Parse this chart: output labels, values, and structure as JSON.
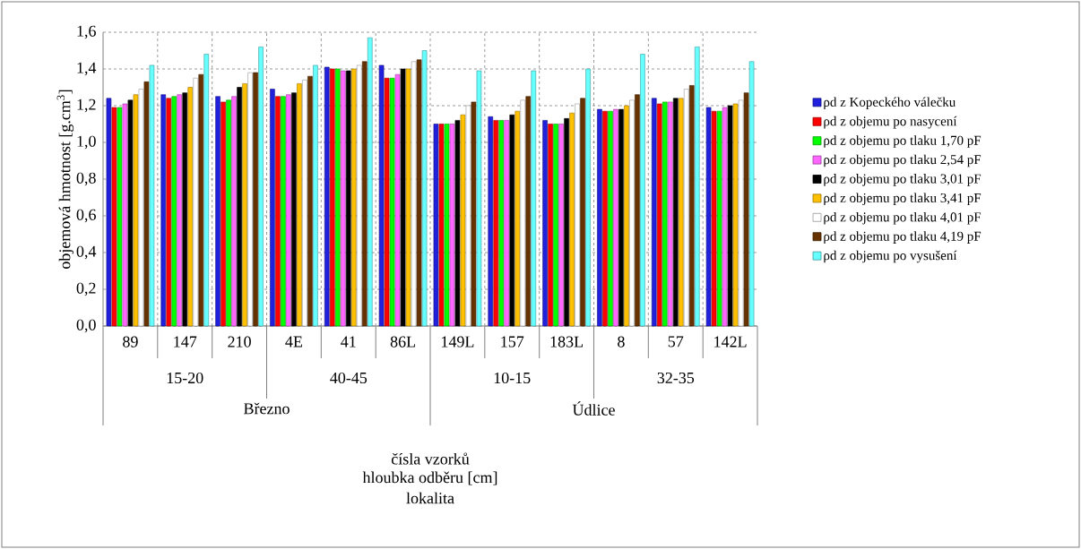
{
  "chart_data": {
    "type": "bar",
    "ylabel": "objemová hmotnost [g.cm$^{3}$]",
    "categories": [
      "89",
      "147",
      "210",
      "4E",
      "41",
      "86L",
      "149L",
      "157",
      "183L",
      "8",
      "57",
      "142L"
    ],
    "annotations": [
      "15-20",
      "40-45",
      "10-15",
      "32-35",
      "Březno",
      "Údlice",
      "čísla vzorků",
      "hloubka odběru [cm]",
      "lokalita"
    ],
    "ylim": [
      0,
      1.6
    ],
    "yticks": [
      {
        "value": 0,
        "label": "0,0"
      },
      {
        "value": 0.2,
        "label": "0,2"
      },
      {
        "value": 0.4,
        "label": "0,4"
      },
      {
        "value": 0.6,
        "label": "0,6"
      },
      {
        "value": 0.8,
        "label": "0,8"
      },
      {
        "value": 1.0,
        "label": "1,0"
      },
      {
        "value": 1.2,
        "label": "1,2"
      },
      {
        "value": 1.4,
        "label": "1,4"
      },
      {
        "value": 1.6,
        "label": "1,6"
      }
    ],
    "grid": true,
    "legend": "right",
    "series": [
      {
        "name": "ρd z Kopeckého válečku",
        "color": "#2020dd",
        "values": [
          1.24,
          1.26,
          1.25,
          1.29,
          1.41,
          1.42,
          1.1,
          1.14,
          1.12,
          1.18,
          1.24,
          1.19
        ]
      },
      {
        "name": "ρd z objemu po nasycení",
        "color": "#ff0000",
        "values": [
          1.19,
          1.24,
          1.22,
          1.25,
          1.4,
          1.35,
          1.1,
          1.12,
          1.1,
          1.17,
          1.21,
          1.17
        ]
      },
      {
        "name": "ρd z objemu po tlaku  1,70 pF",
        "color": "#00ff00",
        "values": [
          1.19,
          1.25,
          1.23,
          1.25,
          1.4,
          1.35,
          1.1,
          1.12,
          1.1,
          1.17,
          1.22,
          1.17
        ]
      },
      {
        "name": "ρd z objemu po tlaku  2,54 pF",
        "color": "#ff66ff",
        "values": [
          1.21,
          1.26,
          1.25,
          1.26,
          1.39,
          1.37,
          1.1,
          1.12,
          1.1,
          1.18,
          1.22,
          1.19
        ]
      },
      {
        "name": "ρd z objemu po tlaku  3,01 pF",
        "color": "#000000",
        "values": [
          1.23,
          1.27,
          1.3,
          1.27,
          1.39,
          1.4,
          1.12,
          1.15,
          1.13,
          1.18,
          1.24,
          1.2
        ]
      },
      {
        "name": "ρd z objemu po tlaku  3,41 pF",
        "color": "#ffc000",
        "values": [
          1.26,
          1.3,
          1.32,
          1.32,
          1.4,
          1.4,
          1.15,
          1.17,
          1.16,
          1.2,
          1.24,
          1.21
        ]
      },
      {
        "name": "ρd z objemu po tlaku  4,01 pF",
        "color": "#ffffff",
        "values": [
          1.29,
          1.35,
          1.38,
          1.34,
          1.42,
          1.44,
          1.2,
          1.23,
          1.21,
          1.23,
          1.29,
          1.23
        ]
      },
      {
        "name": "ρd z objemu po tlaku  4,19 pF",
        "color": "#663300",
        "values": [
          1.33,
          1.37,
          1.38,
          1.36,
          1.44,
          1.45,
          1.22,
          1.25,
          1.24,
          1.26,
          1.31,
          1.27
        ]
      },
      {
        "name": "ρd z objemu po vysušení",
        "color": "#66ffff",
        "values": [
          1.42,
          1.48,
          1.52,
          1.42,
          1.57,
          1.5,
          1.39,
          1.39,
          1.4,
          1.48,
          1.52,
          1.44
        ]
      }
    ]
  }
}
